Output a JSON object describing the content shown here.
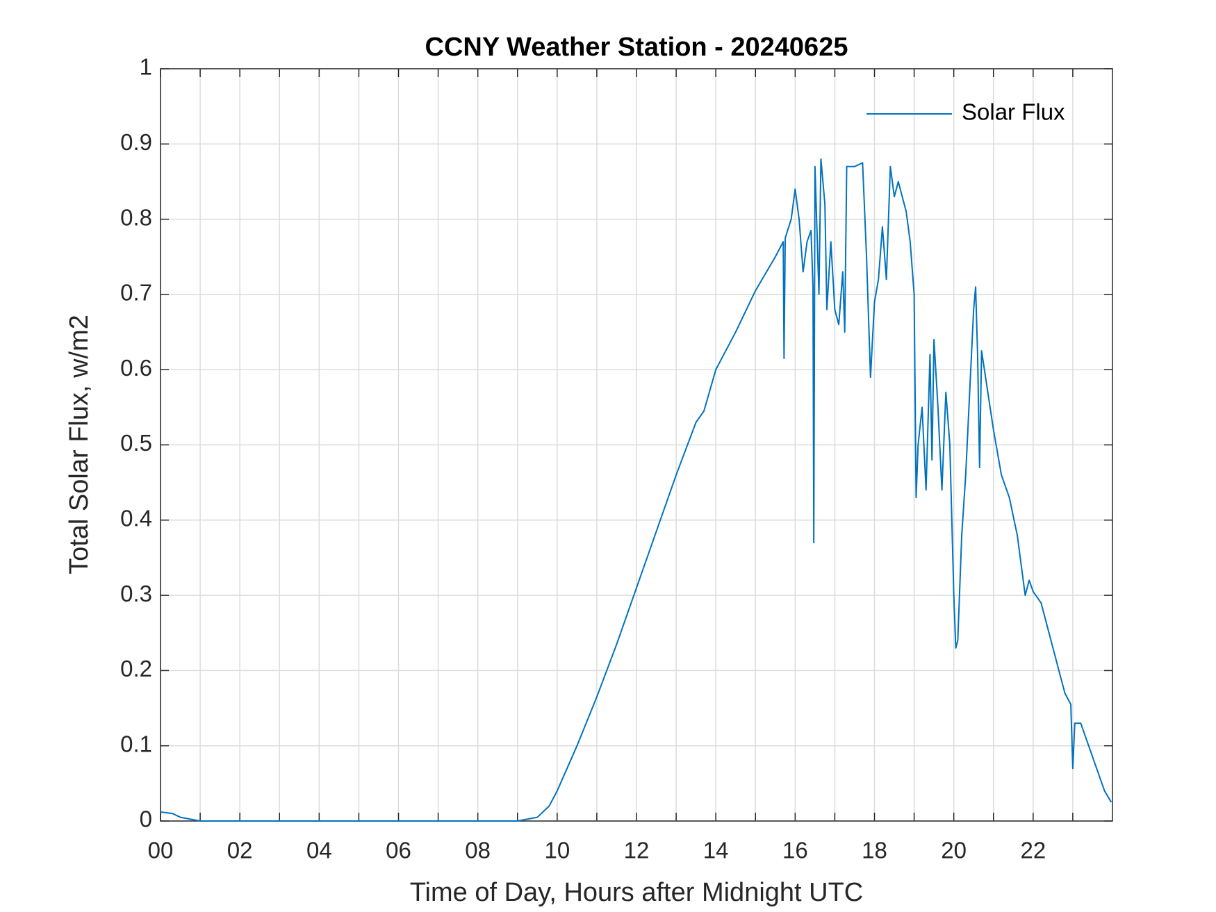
{
  "chart_data": {
    "type": "line",
    "title": "CCNY Weather Station - 20240625",
    "xlabel": "Time of Day, Hours after Midnight UTC",
    "ylabel": "Total Solar Flux, w/m2",
    "x": [
      0,
      0.3,
      0.5,
      1.0,
      3.0,
      6.0,
      9.0,
      9.5,
      9.8,
      10.0,
      10.5,
      11.0,
      11.5,
      12.0,
      12.5,
      13.0,
      13.5,
      13.7,
      14.0,
      14.5,
      15.0,
      15.5,
      15.7,
      15.72,
      15.75,
      15.9,
      16.0,
      16.1,
      16.2,
      16.3,
      16.4,
      16.45,
      16.47,
      16.5,
      16.6,
      16.65,
      16.75,
      16.8,
      16.9,
      17.0,
      17.1,
      17.2,
      17.25,
      17.3,
      17.5,
      17.7,
      17.8,
      17.9,
      18.0,
      18.1,
      18.2,
      18.3,
      18.4,
      18.5,
      18.6,
      18.8,
      18.9,
      19.0,
      19.05,
      19.1,
      19.2,
      19.3,
      19.4,
      19.45,
      19.5,
      19.6,
      19.7,
      19.8,
      19.9,
      20.0,
      20.05,
      20.1,
      20.2,
      20.3,
      20.4,
      20.5,
      20.55,
      20.6,
      20.65,
      20.7,
      20.8,
      21.0,
      21.2,
      21.4,
      21.6,
      21.8,
      21.9,
      22.0,
      22.2,
      22.4,
      22.6,
      22.8,
      22.95,
      23.0,
      23.05,
      23.2,
      23.4,
      23.6,
      23.8,
      23.97
    ],
    "series": [
      {
        "name": "Solar Flux",
        "color": "#0072bd",
        "values": [
          0.012,
          0.01,
          0.005,
          0.0,
          0.0,
          0.0,
          0.0,
          0.005,
          0.02,
          0.04,
          0.1,
          0.165,
          0.235,
          0.31,
          0.385,
          0.46,
          0.53,
          0.545,
          0.6,
          0.65,
          0.705,
          0.75,
          0.77,
          0.615,
          0.775,
          0.8,
          0.84,
          0.8,
          0.73,
          0.77,
          0.785,
          0.71,
          0.37,
          0.87,
          0.7,
          0.88,
          0.82,
          0.68,
          0.77,
          0.68,
          0.66,
          0.73,
          0.65,
          0.87,
          0.87,
          0.875,
          0.75,
          0.59,
          0.69,
          0.72,
          0.79,
          0.72,
          0.87,
          0.83,
          0.85,
          0.81,
          0.77,
          0.7,
          0.43,
          0.5,
          0.55,
          0.44,
          0.62,
          0.48,
          0.64,
          0.55,
          0.44,
          0.57,
          0.5,
          0.3,
          0.23,
          0.24,
          0.38,
          0.46,
          0.57,
          0.68,
          0.71,
          0.62,
          0.47,
          0.625,
          0.59,
          0.52,
          0.46,
          0.43,
          0.38,
          0.3,
          0.32,
          0.305,
          0.29,
          0.25,
          0.21,
          0.17,
          0.155,
          0.07,
          0.13,
          0.13,
          0.1,
          0.07,
          0.04,
          0.025
        ]
      }
    ],
    "xlim": [
      0,
      24
    ],
    "xticks": [
      {
        "value": 0,
        "label": "00"
      },
      {
        "value": 2,
        "label": "02"
      },
      {
        "value": 4,
        "label": "04"
      },
      {
        "value": 6,
        "label": "06"
      },
      {
        "value": 8,
        "label": "08"
      },
      10,
      12,
      14,
      16,
      18,
      20,
      22
    ],
    "xminorticks": [
      1,
      3,
      5,
      7,
      9,
      11,
      13,
      15,
      17,
      19,
      21,
      23
    ],
    "ylim": [
      0,
      1
    ],
    "yticks": [
      0,
      0.1,
      0.2,
      0.3,
      0.4,
      0.5,
      0.6,
      0.7,
      0.8,
      0.9,
      1
    ],
    "grid": true,
    "legend": "northeast"
  }
}
